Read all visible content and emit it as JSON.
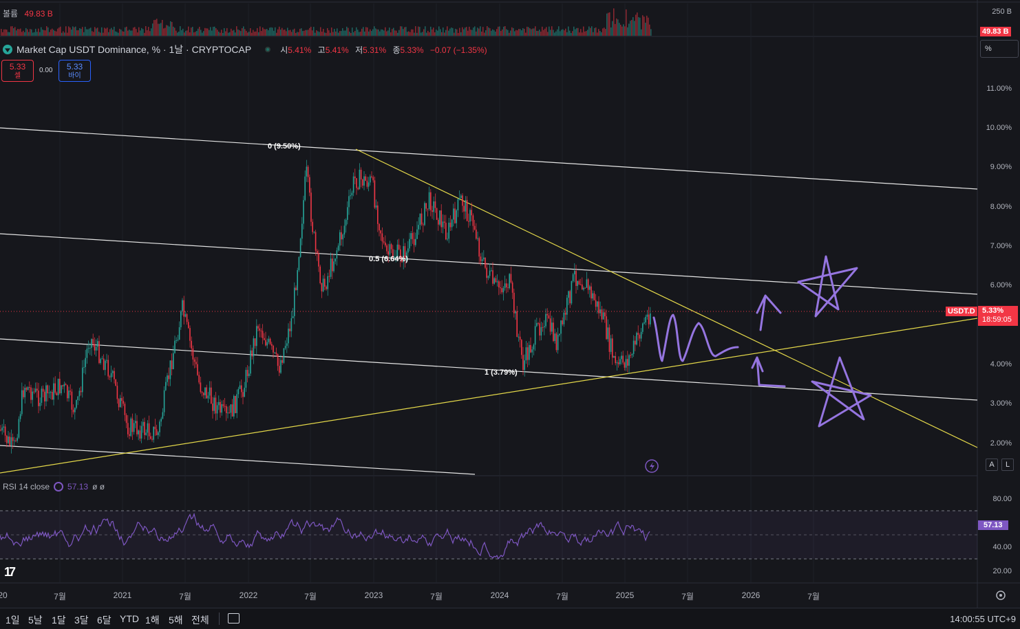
{
  "volume": {
    "label": "볼륨",
    "value": "49.83 B",
    "scale_top": "250 B",
    "tag": "49.83 B"
  },
  "symbol": {
    "title": "Market Cap USDT Dominance, % · 1날 · CRYPTOCAP",
    "ohlc": [
      {
        "key": "시",
        "value": "5.41%"
      },
      {
        "key": "고",
        "value": "5.41%"
      },
      {
        "key": "저",
        "value": "5.31%"
      },
      {
        "key": "종",
        "value": "5.33%"
      }
    ],
    "change": "−0.07 (−1.35%)"
  },
  "trade": {
    "sell_price": "5.33",
    "sell_label": "셀",
    "spread": "0.00",
    "buy_price": "5.33",
    "buy_label": "바이"
  },
  "price_scale": {
    "mode_button": "%",
    "labels": [
      "11.00%",
      "10.00%",
      "9.00%",
      "8.00%",
      "7.00%",
      "6.00%",
      "4.00%",
      "3.00%",
      "2.00%"
    ],
    "current_tag_symbol": "USDT.D",
    "current_tag_value": "5.33%",
    "countdown": "18:59:05",
    "auto_button": "A",
    "log_button": "L"
  },
  "fib_labels": {
    "top": "0 (9.50%)",
    "mid": "0.5 (6.64%)",
    "bottom": "1 (3.79%)"
  },
  "rsi": {
    "legend": "RSI 14 close",
    "value": "57.13",
    "extra": "ø ø",
    "scale_labels": [
      "80.00",
      "40.00",
      "20.00"
    ],
    "tag": "57.13"
  },
  "time_axis": [
    "20",
    "7월",
    "2021",
    "7월",
    "2022",
    "7월",
    "2023",
    "7월",
    "2024",
    "7월",
    "2025",
    "7월",
    "2026",
    "7월"
  ],
  "range_buttons": [
    "1일",
    "5날",
    "1달",
    "3달",
    "6달",
    "YTD",
    "1해",
    "5해",
    "전체"
  ],
  "clock": "14:00:55 UTC+9",
  "colors": {
    "up": "#26a69a",
    "down": "#f23645",
    "rsi": "#7e57c2",
    "trendline": "#e5d94a",
    "drawing": "#9575e0",
    "background": "#16171c"
  }
}
